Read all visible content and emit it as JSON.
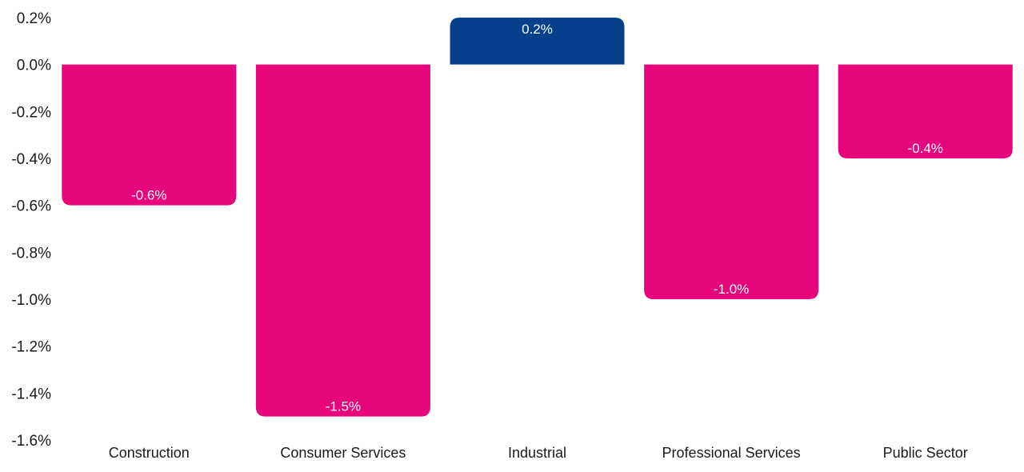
{
  "chart_data": {
    "type": "bar",
    "title": "",
    "xlabel": "",
    "ylabel": "",
    "categories": [
      "Construction",
      "Consumer Services",
      "Industrial",
      "Professional Services",
      "Public Sector"
    ],
    "values": [
      -0.6,
      -1.5,
      0.2,
      -1.0,
      -0.4
    ],
    "value_labels": [
      "-0.6%",
      "-1.5%",
      "0.2%",
      "-1.0%",
      "-0.4%"
    ],
    "ylim": [
      -1.6,
      0.2
    ],
    "yticks": [
      0.2,
      0.0,
      -0.2,
      -0.4,
      -0.6,
      -0.8,
      -1.0,
      -1.2,
      -1.4,
      -1.6
    ],
    "ytick_labels": [
      "0.2%",
      "0.0%",
      "-0.2%",
      "-0.4%",
      "-0.6%",
      "-0.8%",
      "-1.0%",
      "-1.2%",
      "-1.4%",
      "-1.6%"
    ],
    "grid": false,
    "legend": "none",
    "colors": {
      "negative": "#e6057a",
      "positive": "#06408c",
      "label_text": "#ffffff",
      "axis_text": "#1a1a1a"
    }
  }
}
